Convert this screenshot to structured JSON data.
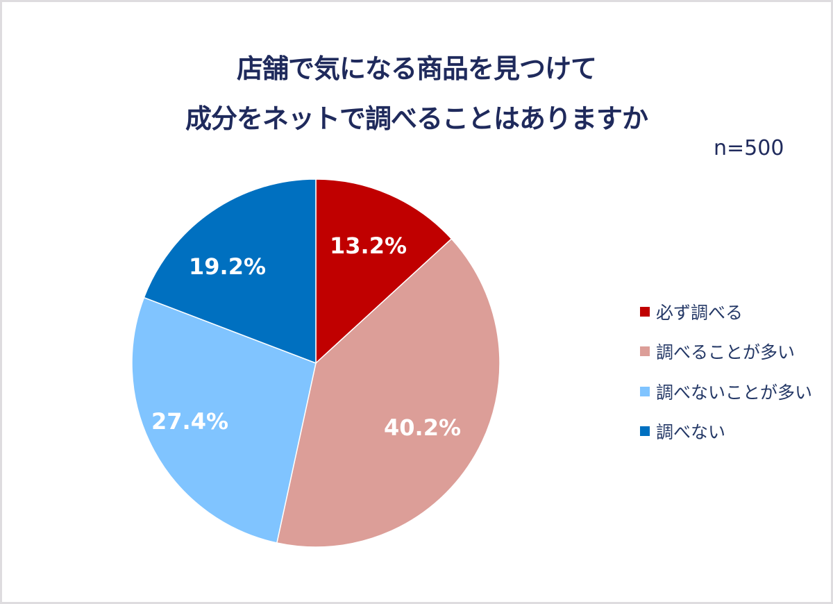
{
  "title": {
    "line1": "店舗で気になる商品を見つけて",
    "line2": "成分をネットで調べることはありますか"
  },
  "sample_size": "n=500",
  "legend": [
    {
      "label": "必ず調べる",
      "color": "#c00000"
    },
    {
      "label": "調べることが多い",
      "color": "#dc9e98"
    },
    {
      "label": "調べないことが多い",
      "color": "#80c4ff"
    },
    {
      "label": "調べない",
      "color": "#0070c0"
    }
  ],
  "slices": [
    {
      "label": "13.2%"
    },
    {
      "label": "40.2%"
    },
    {
      "label": "27.4%"
    },
    {
      "label": "19.2%"
    }
  ],
  "chart_data": {
    "type": "pie",
    "title": "店舗で気になる商品を見つけて成分をネットで調べることはありますか",
    "subtitle": "n=500",
    "categories": [
      "必ず調べる",
      "調べることが多い",
      "調べないことが多い",
      "調べない"
    ],
    "values": [
      13.2,
      40.2,
      27.4,
      19.2
    ],
    "unit": "%",
    "colors": [
      "#c00000",
      "#dc9e98",
      "#80c4ff",
      "#0070c0"
    ],
    "start_angle": "12 o'clock, clockwise",
    "legend_position": "right"
  }
}
